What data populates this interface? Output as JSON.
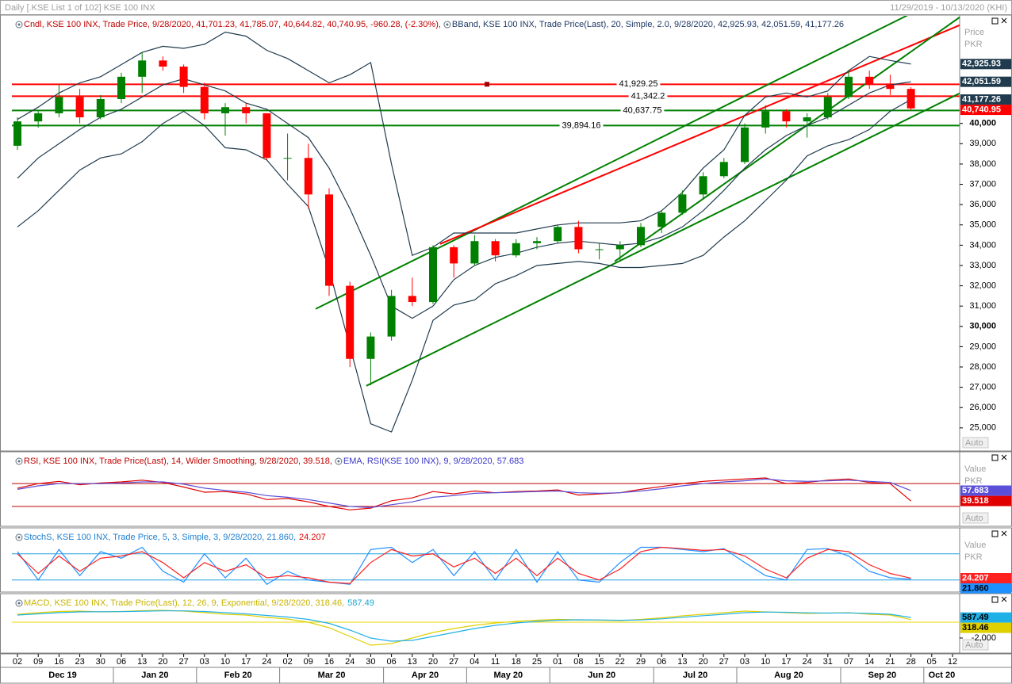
{
  "header": {
    "title": "Daily [.KSE List 1 of 102] KSE 100 INX",
    "date_range": "11/29/2019 - 10/13/2020 (KHI)"
  },
  "chart_data": [
    {
      "type": "candlestick",
      "legend": [
        {
          "text": "Cndl, KSE 100 INX, Trade Price, 9/28/2020, 41,701.23, 41,785.07, 40,644.82, 40,740.95, -960.28, (-2.30%),",
          "color": "#c00000"
        },
        {
          "text": "BBand, KSE 100 INX, Trade Price(Last), 20, Simple, 2.0, 9/28/2020, 42,925.93, 42,051.59, 41,177.26",
          "color": "#1f3864"
        }
      ],
      "ylabel": "Price",
      "yunit": "PKR",
      "scale_mode": "Auto",
      "categories": [
        "02",
        "09",
        "16",
        "23",
        "30",
        "06",
        "13",
        "20",
        "27",
        "03",
        "10",
        "17",
        "24",
        "02",
        "09",
        "16",
        "24",
        "30",
        "06",
        "13",
        "20",
        "27",
        "04",
        "11",
        "18",
        "25",
        "01",
        "08",
        "15",
        "22",
        "29",
        "06",
        "13",
        "20",
        "27",
        "03",
        "10",
        "17",
        "24",
        "31",
        "07",
        "14",
        "21",
        "28",
        "05",
        "12"
      ],
      "months": [
        "Dec 19",
        "Jan 20",
        "Feb 20",
        "Mar 20",
        "Apr 20",
        "May 20",
        "Jun 20",
        "Jul 20",
        "Aug 20",
        "Sep 20",
        "Oct 20"
      ],
      "open": [
        38900,
        40100,
        40500,
        41300,
        40300,
        41200,
        42300,
        43100,
        42800,
        41800,
        40500,
        40800,
        40500,
        38300,
        38300,
        36500,
        32000,
        28400,
        29500,
        31500,
        31200,
        33900,
        33100,
        34200,
        33500,
        34100,
        34200,
        34900,
        33800,
        33800,
        34000,
        34900,
        35600,
        36500,
        37400,
        38100,
        39800,
        40600,
        40100,
        40300,
        41300,
        42300,
        41900,
        41701.23,
        null,
        null
      ],
      "high": [
        40300,
        40600,
        41900,
        41700,
        41400,
        42500,
        43500,
        43300,
        42900,
        42000,
        41000,
        41000,
        40500,
        39500,
        39000,
        36800,
        32200,
        29700,
        31800,
        32400,
        34000,
        34000,
        34500,
        34300,
        34300,
        34400,
        35000,
        35200,
        34100,
        34200,
        35100,
        35700,
        36700,
        37600,
        38300,
        40000,
        40900,
        40700,
        40500,
        41500,
        42600,
        42600,
        42400,
        41785.07,
        null,
        null
      ],
      "low": [
        38700,
        39800,
        40300,
        40000,
        40200,
        41000,
        41500,
        42600,
        41500,
        40200,
        39400,
        40000,
        38200,
        37200,
        35800,
        31500,
        28000,
        27100,
        29300,
        31000,
        31100,
        32400,
        33000,
        33200,
        33400,
        33800,
        34100,
        33600,
        33300,
        33200,
        33900,
        34600,
        35500,
        36300,
        37300,
        38000,
        39500,
        39800,
        39300,
        40200,
        41200,
        41700,
        41400,
        40644.82,
        null,
        null
      ],
      "close": [
        40100,
        40500,
        41300,
        40300,
        41200,
        42300,
        43100,
        42800,
        41800,
        40500,
        40800,
        40500,
        38300,
        38300,
        36500,
        32000,
        28400,
        29500,
        31500,
        31200,
        33900,
        33100,
        34200,
        33500,
        34100,
        34200,
        34900,
        33800,
        33800,
        34000,
        34900,
        35600,
        36500,
        37400,
        38100,
        39800,
        40600,
        40100,
        40300,
        41300,
        42300,
        41900,
        41700,
        40740.95,
        null,
        null
      ],
      "up_color": "#008000",
      "down_color": "#ff0000",
      "close_tag": "40,740.95",
      "series": [
        {
          "color": "#1f3b4d",
          "tag": "42,925.93",
          "values": [
            40200,
            40800,
            41500,
            42000,
            42300,
            42900,
            43500,
            43800,
            43700,
            43900,
            44500,
            44300,
            43600,
            43200,
            42600,
            42000,
            42400,
            43000,
            38000,
            33500,
            33900,
            34600,
            34600,
            34600,
            34600,
            34800,
            35000,
            35100,
            35100,
            35100,
            35200,
            35700,
            36600,
            37800,
            38700,
            40400,
            41300,
            41500,
            41300,
            41600,
            42600,
            43300,
            43100,
            42925.93,
            null,
            null
          ]
        },
        {
          "color": "#1f3b4d",
          "tag": "42,051.59",
          "values": [
            37300,
            38300,
            39000,
            39700,
            40300,
            40700,
            41300,
            41900,
            42200,
            41900,
            41600,
            41000,
            40700,
            40000,
            39300,
            37800,
            35800,
            33500,
            31000,
            30400,
            31000,
            32300,
            33000,
            33400,
            33600,
            33900,
            34100,
            34200,
            34100,
            34000,
            34100,
            34400,
            34900,
            35700,
            36700,
            37800,
            38700,
            39400,
            39900,
            40300,
            40900,
            41500,
            41900,
            42051.59,
            null,
            null
          ]
        },
        {
          "color": "#1f3b4d",
          "tag": "41,177.26",
          "values": [
            34900,
            35700,
            36700,
            37700,
            38300,
            38500,
            39100,
            40000,
            40600,
            39900,
            38800,
            38700,
            38200,
            37000,
            35900,
            32800,
            29000,
            25200,
            24800,
            27350,
            30300,
            31050,
            31300,
            32100,
            32500,
            33000,
            33100,
            33200,
            33100,
            32900,
            32900,
            33000,
            33100,
            33500,
            34400,
            35200,
            36200,
            37200,
            38400,
            38900,
            39200,
            39700,
            40600,
            41177.26,
            null,
            null
          ]
        }
      ],
      "ylim": [
        23900,
        45300
      ],
      "yticks": [
        {
          "value": 25000,
          "label": "25,000"
        },
        {
          "value": 26000,
          "label": "26,000"
        },
        {
          "value": 27000,
          "label": "27,000"
        },
        {
          "value": 28000,
          "label": "28,000"
        },
        {
          "value": 29000,
          "label": "29,000"
        },
        {
          "value": 30000,
          "label": "30,000"
        },
        {
          "value": 31000,
          "label": "31,000"
        },
        {
          "value": 32000,
          "label": "32,000"
        },
        {
          "value": 33000,
          "label": "33,000"
        },
        {
          "value": 34000,
          "label": "34,000"
        },
        {
          "value": 35000,
          "label": "35,000"
        },
        {
          "value": 36000,
          "label": "36,000"
        },
        {
          "value": 37000,
          "label": "37,000"
        },
        {
          "value": 38000,
          "label": "38,000"
        },
        {
          "value": 39000,
          "label": "39,000"
        },
        {
          "value": 40000,
          "label": "40,000"
        }
      ],
      "levels": [
        {
          "value": 41929.25,
          "label": "41,929.25",
          "color": "#ff0000"
        },
        {
          "value": 41342.2,
          "label": "41,342.2",
          "color": "#ff0000"
        },
        {
          "value": 40637.75,
          "label": "40,637.75",
          "color": "#008000"
        },
        {
          "value": 39894.16,
          "label": "39,894.16",
          "color": "#008000"
        }
      ],
      "trendlines": [
        {
          "color": "#008000",
          "from": [
            14.35,
            30860
          ],
          "to": [
            45.34,
            46600
          ]
        },
        {
          "color": "#ff0000",
          "from": [
            20.34,
            34060
          ],
          "to": [
            45.34,
            44840
          ]
        },
        {
          "color": "#008000",
          "from": [
            16.79,
            27070
          ],
          "to": [
            45.34,
            41480
          ]
        },
        {
          "color": "#008000",
          "from": [
            28.74,
            33200
          ],
          "to": [
            45.34,
            45230
          ]
        }
      ]
    },
    {
      "type": "line",
      "legend": [
        {
          "text": "RSI, KSE 100 INX, Trade Price(Last), 14, Wilder Smoothing, 9/28/2020, 39.518,",
          "color": "#c00000"
        },
        {
          "text": "EMA, RSI(KSE 100 INX), 9, 9/28/2020, 57.683",
          "color": "#3a35c8"
        }
      ],
      "ylabel": "Value",
      "yunit": "PKR",
      "scale_mode": "Auto",
      "ylim": [
        -2,
        123
      ],
      "reference_lines": [
        70,
        30
      ],
      "reference_color": "#c00000",
      "series": [
        {
          "color": "#e00000",
          "tag": "39.518",
          "values": [
            62,
            70,
            74,
            68,
            71,
            73,
            76,
            72,
            64,
            55,
            56,
            52,
            42,
            44,
            38,
            30,
            24,
            27,
            40,
            45,
            56,
            52,
            57,
            54,
            56,
            57,
            59,
            50,
            52,
            54,
            60,
            65,
            70,
            74,
            76,
            78,
            80,
            70,
            72,
            76,
            78,
            72,
            70,
            39.518,
            null,
            null
          ]
        },
        {
          "color": "#5a4fd8",
          "tag": "57.683",
          "values": [
            60,
            66,
            70,
            70,
            70,
            71,
            73,
            73,
            69,
            62,
            58,
            55,
            49,
            46,
            42,
            36,
            30,
            28,
            33,
            38,
            46,
            49,
            53,
            54,
            55,
            56,
            57,
            54,
            53,
            54,
            57,
            61,
            66,
            70,
            73,
            75,
            78,
            75,
            74,
            75,
            76,
            74,
            72,
            57.683,
            null,
            null
          ]
        }
      ]
    },
    {
      "type": "line",
      "legend": [
        {
          "text": "StochS, KSE 100 INX, Trade Price, 5, 3, Simple, 3, 9/28/2020, 21.860,",
          "color": "#1e7fd0"
        },
        {
          "text": "24.207",
          "color": "#e00000"
        }
      ],
      "ylabel": "Value",
      "yunit": "PKR",
      "scale_mode": "Auto",
      "ylim": [
        -4,
        136
      ],
      "reference_lines": [
        80,
        20
      ],
      "reference_color": "#20a0e0",
      "series": [
        {
          "color": "#1e90ff",
          "tag": "21.860",
          "values": [
            85,
            20,
            90,
            30,
            85,
            70,
            95,
            40,
            15,
            80,
            25,
            70,
            10,
            40,
            20,
            15,
            10,
            90,
            95,
            60,
            90,
            30,
            85,
            20,
            90,
            15,
            85,
            20,
            15,
            60,
            95,
            95,
            90,
            85,
            92,
            60,
            30,
            20,
            90,
            92,
            75,
            40,
            25,
            21.86,
            null,
            null
          ]
        },
        {
          "color": "#ff2020",
          "tag": "24.207",
          "values": [
            80,
            35,
            75,
            40,
            70,
            75,
            85,
            60,
            25,
            60,
            40,
            55,
            25,
            30,
            25,
            15,
            12,
            60,
            90,
            75,
            80,
            50,
            70,
            35,
            70,
            30,
            70,
            35,
            20,
            45,
            85,
            95,
            92,
            88,
            90,
            75,
            45,
            25,
            70,
            90,
            85,
            55,
            35,
            24.207,
            null,
            null
          ]
        }
      ]
    },
    {
      "type": "line",
      "legend": [
        {
          "text": "MACD, KSE 100 INX, Trade Price(Last), 12, 26, 9, Exponential, 9/28/2020, 318.46,",
          "color": "#c8b400"
        },
        {
          "text": "587.49",
          "color": "#1aa8d8"
        }
      ],
      "scale_mode": "Auto",
      "ylim": [
        -3800,
        3500
      ],
      "yticks": [
        {
          "value": -2000,
          "label": "-2,000"
        }
      ],
      "reference_lines": [
        0
      ],
      "reference_color": "#e8d800",
      "series": [
        {
          "color": "#e0d000",
          "tag": "318.46",
          "values": [
            1000,
            1200,
            1350,
            1400,
            1300,
            1350,
            1450,
            1500,
            1400,
            1200,
            1000,
            900,
            600,
            400,
            0,
            -700,
            -1800,
            -2900,
            -2700,
            -2000,
            -1300,
            -800,
            -400,
            -100,
            100,
            250,
            350,
            300,
            250,
            200,
            350,
            550,
            800,
            1000,
            1200,
            1400,
            1300,
            1200,
            1100,
            1150,
            1200,
            1000,
            900,
            318.46,
            null,
            null
          ]
        },
        {
          "color": "#20b0e8",
          "tag": "587.49",
          "values": [
            900,
            1050,
            1200,
            1300,
            1320,
            1330,
            1380,
            1430,
            1430,
            1350,
            1200,
            1050,
            850,
            650,
            350,
            -150,
            -1000,
            -2000,
            -2400,
            -2300,
            -1800,
            -1300,
            -800,
            -400,
            -100,
            100,
            250,
            300,
            280,
            240,
            280,
            420,
            620,
            820,
            1000,
            1200,
            1280,
            1250,
            1180,
            1150,
            1170,
            1100,
            1000,
            587.49,
            null,
            null
          ]
        }
      ]
    }
  ]
}
